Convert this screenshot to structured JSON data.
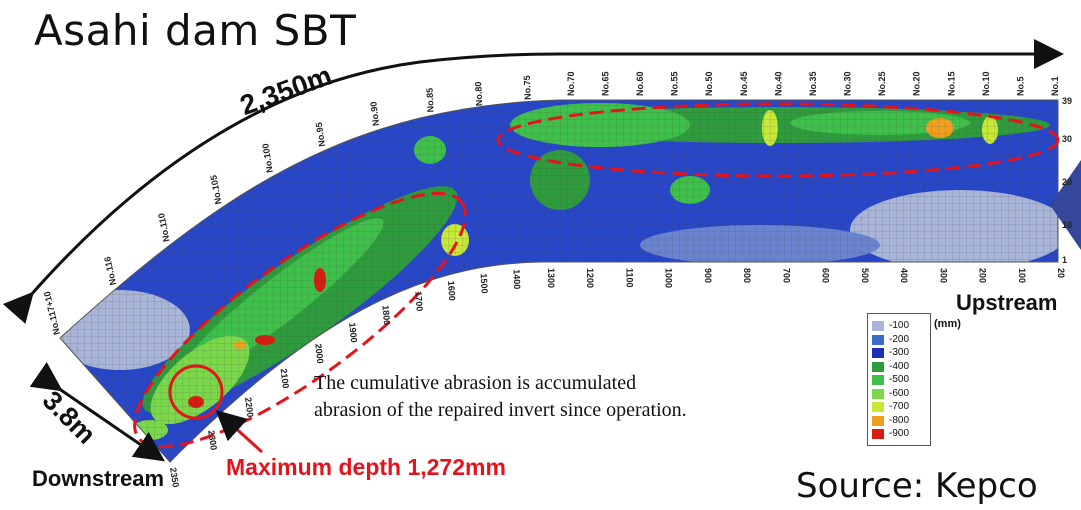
{
  "title": "Asahi dam SBT",
  "source": "Source: Kepco",
  "length_label": "2,350m",
  "width_label": "3.8m",
  "upstream": "Upstream",
  "downstream": "Downstream",
  "max_depth": "Maximum depth 1,272mm",
  "note_line1": "The cumulative abrasion is accumulated",
  "note_line2": "abrasion of the repaired invert since operation.",
  "unit": "(mm)",
  "legend": [
    {
      "label": "-100",
      "color": "#a8b4d8"
    },
    {
      "label": "-200",
      "color": "#3c6cc8"
    },
    {
      "label": "-300",
      "color": "#1a2fb8"
    },
    {
      "label": "-400",
      "color": "#2e9b3c"
    },
    {
      "label": "-500",
      "color": "#3fc04a"
    },
    {
      "label": "-600",
      "color": "#7ad84a"
    },
    {
      "label": "-700",
      "color": "#c8e838"
    },
    {
      "label": "-800",
      "color": "#f0a020"
    },
    {
      "label": "-900",
      "color": "#d81c10"
    }
  ],
  "station_labels": [
    "No.1",
    "No.5",
    "No.10",
    "No.15",
    "No.20",
    "No.25",
    "No.30",
    "No.35",
    "No.40",
    "No.45",
    "No.50",
    "No.55",
    "No.60",
    "No.65",
    "No.70",
    "No.75",
    "No.80",
    "No.85",
    "No.90",
    "No.95",
    "No.100",
    "No.105",
    "No.110",
    "No.116",
    "No.117+10"
  ],
  "distance_labels": [
    "20",
    "100",
    "200",
    "300",
    "400",
    "500",
    "600",
    "700",
    "800",
    "900",
    "1000",
    "1100",
    "1200",
    "1300",
    "1400",
    "1500",
    "1600",
    "1700",
    "1800",
    "1900",
    "2000",
    "2100",
    "2200",
    "2300",
    "2350"
  ],
  "right_axis_labels": [
    "39",
    "30",
    "20",
    "10",
    "1"
  ],
  "colors": {
    "annotation_red": "#e4141c",
    "grid": "#555555"
  }
}
